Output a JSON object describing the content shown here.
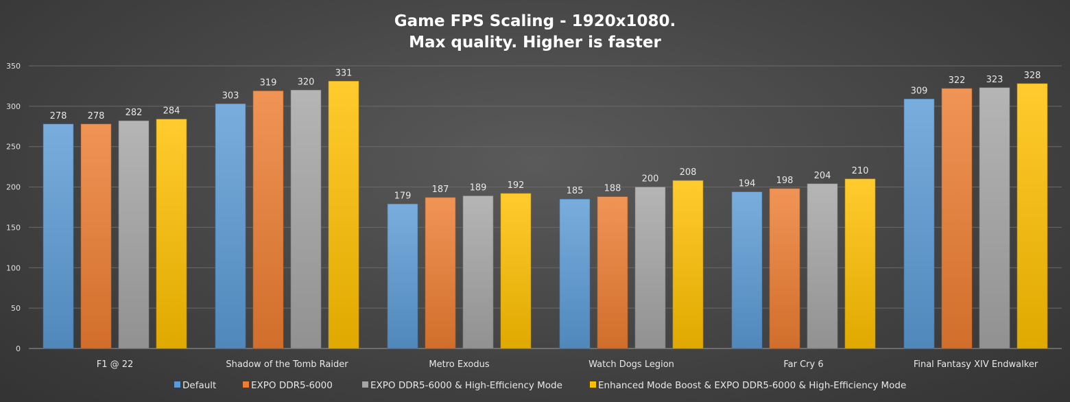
{
  "chart_data": {
    "type": "bar",
    "title_line1": "Game FPS Scaling - 1920x1080.",
    "title_line2": "Max quality. Higher is faster",
    "categories": [
      "F1 @ 22",
      "Shadow of the Tomb Raider",
      "Metro Exodus",
      "Watch Dogs Legion",
      "Far Cry 6",
      "Final Fantasy XIV Endwalker"
    ],
    "series": [
      {
        "name": "Default",
        "color": "#5b9bd5",
        "values": [
          278,
          303,
          179,
          185,
          194,
          309
        ]
      },
      {
        "name": "EXPO DDR5-6000",
        "color": "#ed7d31",
        "values": [
          278,
          319,
          187,
          188,
          198,
          322
        ]
      },
      {
        "name": "EXPO DDR5-6000 & High-Efficiency Mode",
        "color": "#a5a5a5",
        "values": [
          282,
          320,
          189,
          200,
          204,
          323
        ]
      },
      {
        "name": "Enhanced Mode Boost & EXPO DDR5-6000 & High-Efficiency Mode",
        "color": "#ffc000",
        "values": [
          284,
          331,
          192,
          208,
          210,
          328
        ]
      }
    ],
    "ylim": [
      0,
      350
    ],
    "yticks": [
      "0",
      "50",
      "100",
      "150",
      "200",
      "250",
      "300",
      "350"
    ],
    "grid": true,
    "legend_position": "bottom"
  }
}
